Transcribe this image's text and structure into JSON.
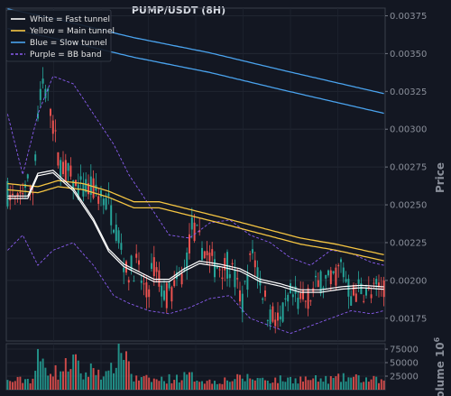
{
  "chart_data": {
    "type": "candlestick",
    "title": "PUMP/USDT (8H)",
    "ylabel": "Price",
    "volume_label": "Volume",
    "volume_exponent_label": "10",
    "volume_exponent_power": "6",
    "ylim": [
      0.0016,
      0.0038
    ],
    "volume_ylim": [
      0,
      85000
    ],
    "y_ticks": [
      "0.00375",
      "0.00350",
      "0.00325",
      "0.00300",
      "0.00275",
      "0.00250",
      "0.00225",
      "0.00200",
      "0.00175"
    ],
    "y_tick_values": [
      0.00375,
      0.0035,
      0.00325,
      0.003,
      0.00275,
      0.0025,
      0.00225,
      0.002,
      0.00175
    ],
    "volume_ticks": [
      "75000",
      "50000",
      "25000"
    ],
    "volume_tick_values": [
      75000,
      50000,
      25000
    ],
    "grid": true,
    "legend_position": "top-left",
    "colors": {
      "background": "#131722",
      "up": "#26a69a",
      "down": "#ef5350",
      "fast_tunnel": "#ffffff",
      "main_tunnel": "#f5c542",
      "slow_tunnel": "#4aa3ee",
      "bb_band": "#8a5cf0"
    },
    "legend": [
      {
        "label": "White = Fast tunnel",
        "color": "#ffffff",
        "dashed": false
      },
      {
        "label": "Yellow = Main tunnel",
        "color": "#f5c542",
        "dashed": false
      },
      {
        "label": "Blue = Slow tunnel",
        "color": "#4aa3ee",
        "dashed": false
      },
      {
        "label": "Purple = BB band",
        "color": "#8a5cf0",
        "dashed": true
      }
    ],
    "candle_count": 150,
    "price_anchors": [
      [
        0,
        0.00258
      ],
      [
        4,
        0.0025
      ],
      [
        7,
        0.00265
      ],
      [
        10,
        0.0026
      ],
      [
        12,
        0.0031
      ],
      [
        14,
        0.0033
      ],
      [
        17,
        0.00315
      ],
      [
        20,
        0.0028
      ],
      [
        24,
        0.0027
      ],
      [
        28,
        0.0026
      ],
      [
        34,
        0.0026
      ],
      [
        40,
        0.0025
      ],
      [
        44,
        0.0023
      ],
      [
        47,
        0.00205
      ],
      [
        51,
        0.0021
      ],
      [
        55,
        0.0019
      ],
      [
        58,
        0.0021
      ],
      [
        62,
        0.0019
      ],
      [
        65,
        0.00192
      ],
      [
        70,
        0.00205
      ],
      [
        73,
        0.00235
      ],
      [
        77,
        0.00222
      ],
      [
        82,
        0.0021
      ],
      [
        88,
        0.0021
      ],
      [
        93,
        0.00185
      ],
      [
        97,
        0.0022
      ],
      [
        103,
        0.0018
      ],
      [
        108,
        0.00172
      ],
      [
        112,
        0.0019
      ],
      [
        116,
        0.00185
      ],
      [
        120,
        0.0019
      ],
      [
        124,
        0.002
      ],
      [
        128,
        0.00198
      ],
      [
        132,
        0.0021
      ],
      [
        136,
        0.0019
      ],
      [
        140,
        0.00195
      ],
      [
        144,
        0.0019
      ],
      [
        149,
        0.00198
      ]
    ],
    "volume_anchors": [
      [
        0,
        15000
      ],
      [
        10,
        20000
      ],
      [
        12,
        55000
      ],
      [
        15,
        45000
      ],
      [
        20,
        30000
      ],
      [
        26,
        55000
      ],
      [
        30,
        25000
      ],
      [
        34,
        40000
      ],
      [
        40,
        25000
      ],
      [
        43,
        60000
      ],
      [
        46,
        80000
      ],
      [
        50,
        20000
      ],
      [
        60,
        18000
      ],
      [
        72,
        25000
      ],
      [
        80,
        15000
      ],
      [
        95,
        22000
      ],
      [
        105,
        18000
      ],
      [
        115,
        20000
      ],
      [
        125,
        18000
      ],
      [
        135,
        22000
      ],
      [
        149,
        16000
      ]
    ],
    "tunnels": {
      "fast_tunnel": {
        "label": "Fast tunnel",
        "points": [
          [
            0,
            0.00255
          ],
          [
            8,
            0.00255
          ],
          [
            12,
            0.0027
          ],
          [
            18,
            0.00272
          ],
          [
            26,
            0.0026
          ],
          [
            34,
            0.0024
          ],
          [
            40,
            0.0022
          ],
          [
            46,
            0.0021
          ],
          [
            52,
            0.00205
          ],
          [
            58,
            0.002
          ],
          [
            64,
            0.002
          ],
          [
            70,
            0.00207
          ],
          [
            76,
            0.00212
          ],
          [
            84,
            0.0021
          ],
          [
            92,
            0.00207
          ],
          [
            100,
            0.002
          ],
          [
            108,
            0.00197
          ],
          [
            116,
            0.00193
          ],
          [
            124,
            0.00193
          ],
          [
            132,
            0.00195
          ],
          [
            140,
            0.00196
          ],
          [
            149,
            0.00195
          ]
        ]
      },
      "main_tunnel": {
        "label": "Main tunnel",
        "points": [
          [
            0,
            0.00262
          ],
          [
            12,
            0.0026
          ],
          [
            20,
            0.00264
          ],
          [
            30,
            0.00262
          ],
          [
            40,
            0.00257
          ],
          [
            50,
            0.0025
          ],
          [
            60,
            0.0025
          ],
          [
            72,
            0.00245
          ],
          [
            84,
            0.0024
          ],
          [
            100,
            0.00233
          ],
          [
            116,
            0.00226
          ],
          [
            130,
            0.00222
          ],
          [
            149,
            0.00215
          ]
        ]
      },
      "slow_tunnel": {
        "label": "Slow tunnel",
        "points": [
          [
            0,
            0.00373
          ],
          [
            20,
            0.00366
          ],
          [
            50,
            0.00354
          ],
          [
            80,
            0.00344
          ],
          [
            110,
            0.00332
          ],
          [
            149,
            0.00317
          ]
        ]
      },
      "bb_upper": {
        "label": "BB band upper",
        "points": [
          [
            0,
            0.0031
          ],
          [
            6,
            0.0027
          ],
          [
            12,
            0.0031
          ],
          [
            18,
            0.00335
          ],
          [
            26,
            0.0033
          ],
          [
            34,
            0.0031
          ],
          [
            42,
            0.0029
          ],
          [
            48,
            0.0027
          ],
          [
            56,
            0.0025
          ],
          [
            64,
            0.0023
          ],
          [
            72,
            0.00228
          ],
          [
            80,
            0.00238
          ],
          [
            88,
            0.0024
          ],
          [
            96,
            0.0023
          ],
          [
            104,
            0.00225
          ],
          [
            112,
            0.00215
          ],
          [
            120,
            0.0021
          ],
          [
            128,
            0.0022
          ],
          [
            136,
            0.00218
          ],
          [
            144,
            0.00212
          ],
          [
            149,
            0.0021
          ]
        ]
      },
      "bb_lower": {
        "label": "BB band lower",
        "points": [
          [
            0,
            0.0022
          ],
          [
            6,
            0.0023
          ],
          [
            12,
            0.0021
          ],
          [
            18,
            0.0022
          ],
          [
            26,
            0.00225
          ],
          [
            34,
            0.0021
          ],
          [
            42,
            0.0019
          ],
          [
            48,
            0.00185
          ],
          [
            56,
            0.0018
          ],
          [
            64,
            0.00178
          ],
          [
            72,
            0.00182
          ],
          [
            80,
            0.00188
          ],
          [
            88,
            0.0019
          ],
          [
            96,
            0.00175
          ],
          [
            104,
            0.0017
          ],
          [
            112,
            0.00165
          ],
          [
            120,
            0.0017
          ],
          [
            128,
            0.00175
          ],
          [
            136,
            0.0018
          ],
          [
            144,
            0.00178
          ],
          [
            149,
            0.0018
          ]
        ]
      }
    }
  }
}
